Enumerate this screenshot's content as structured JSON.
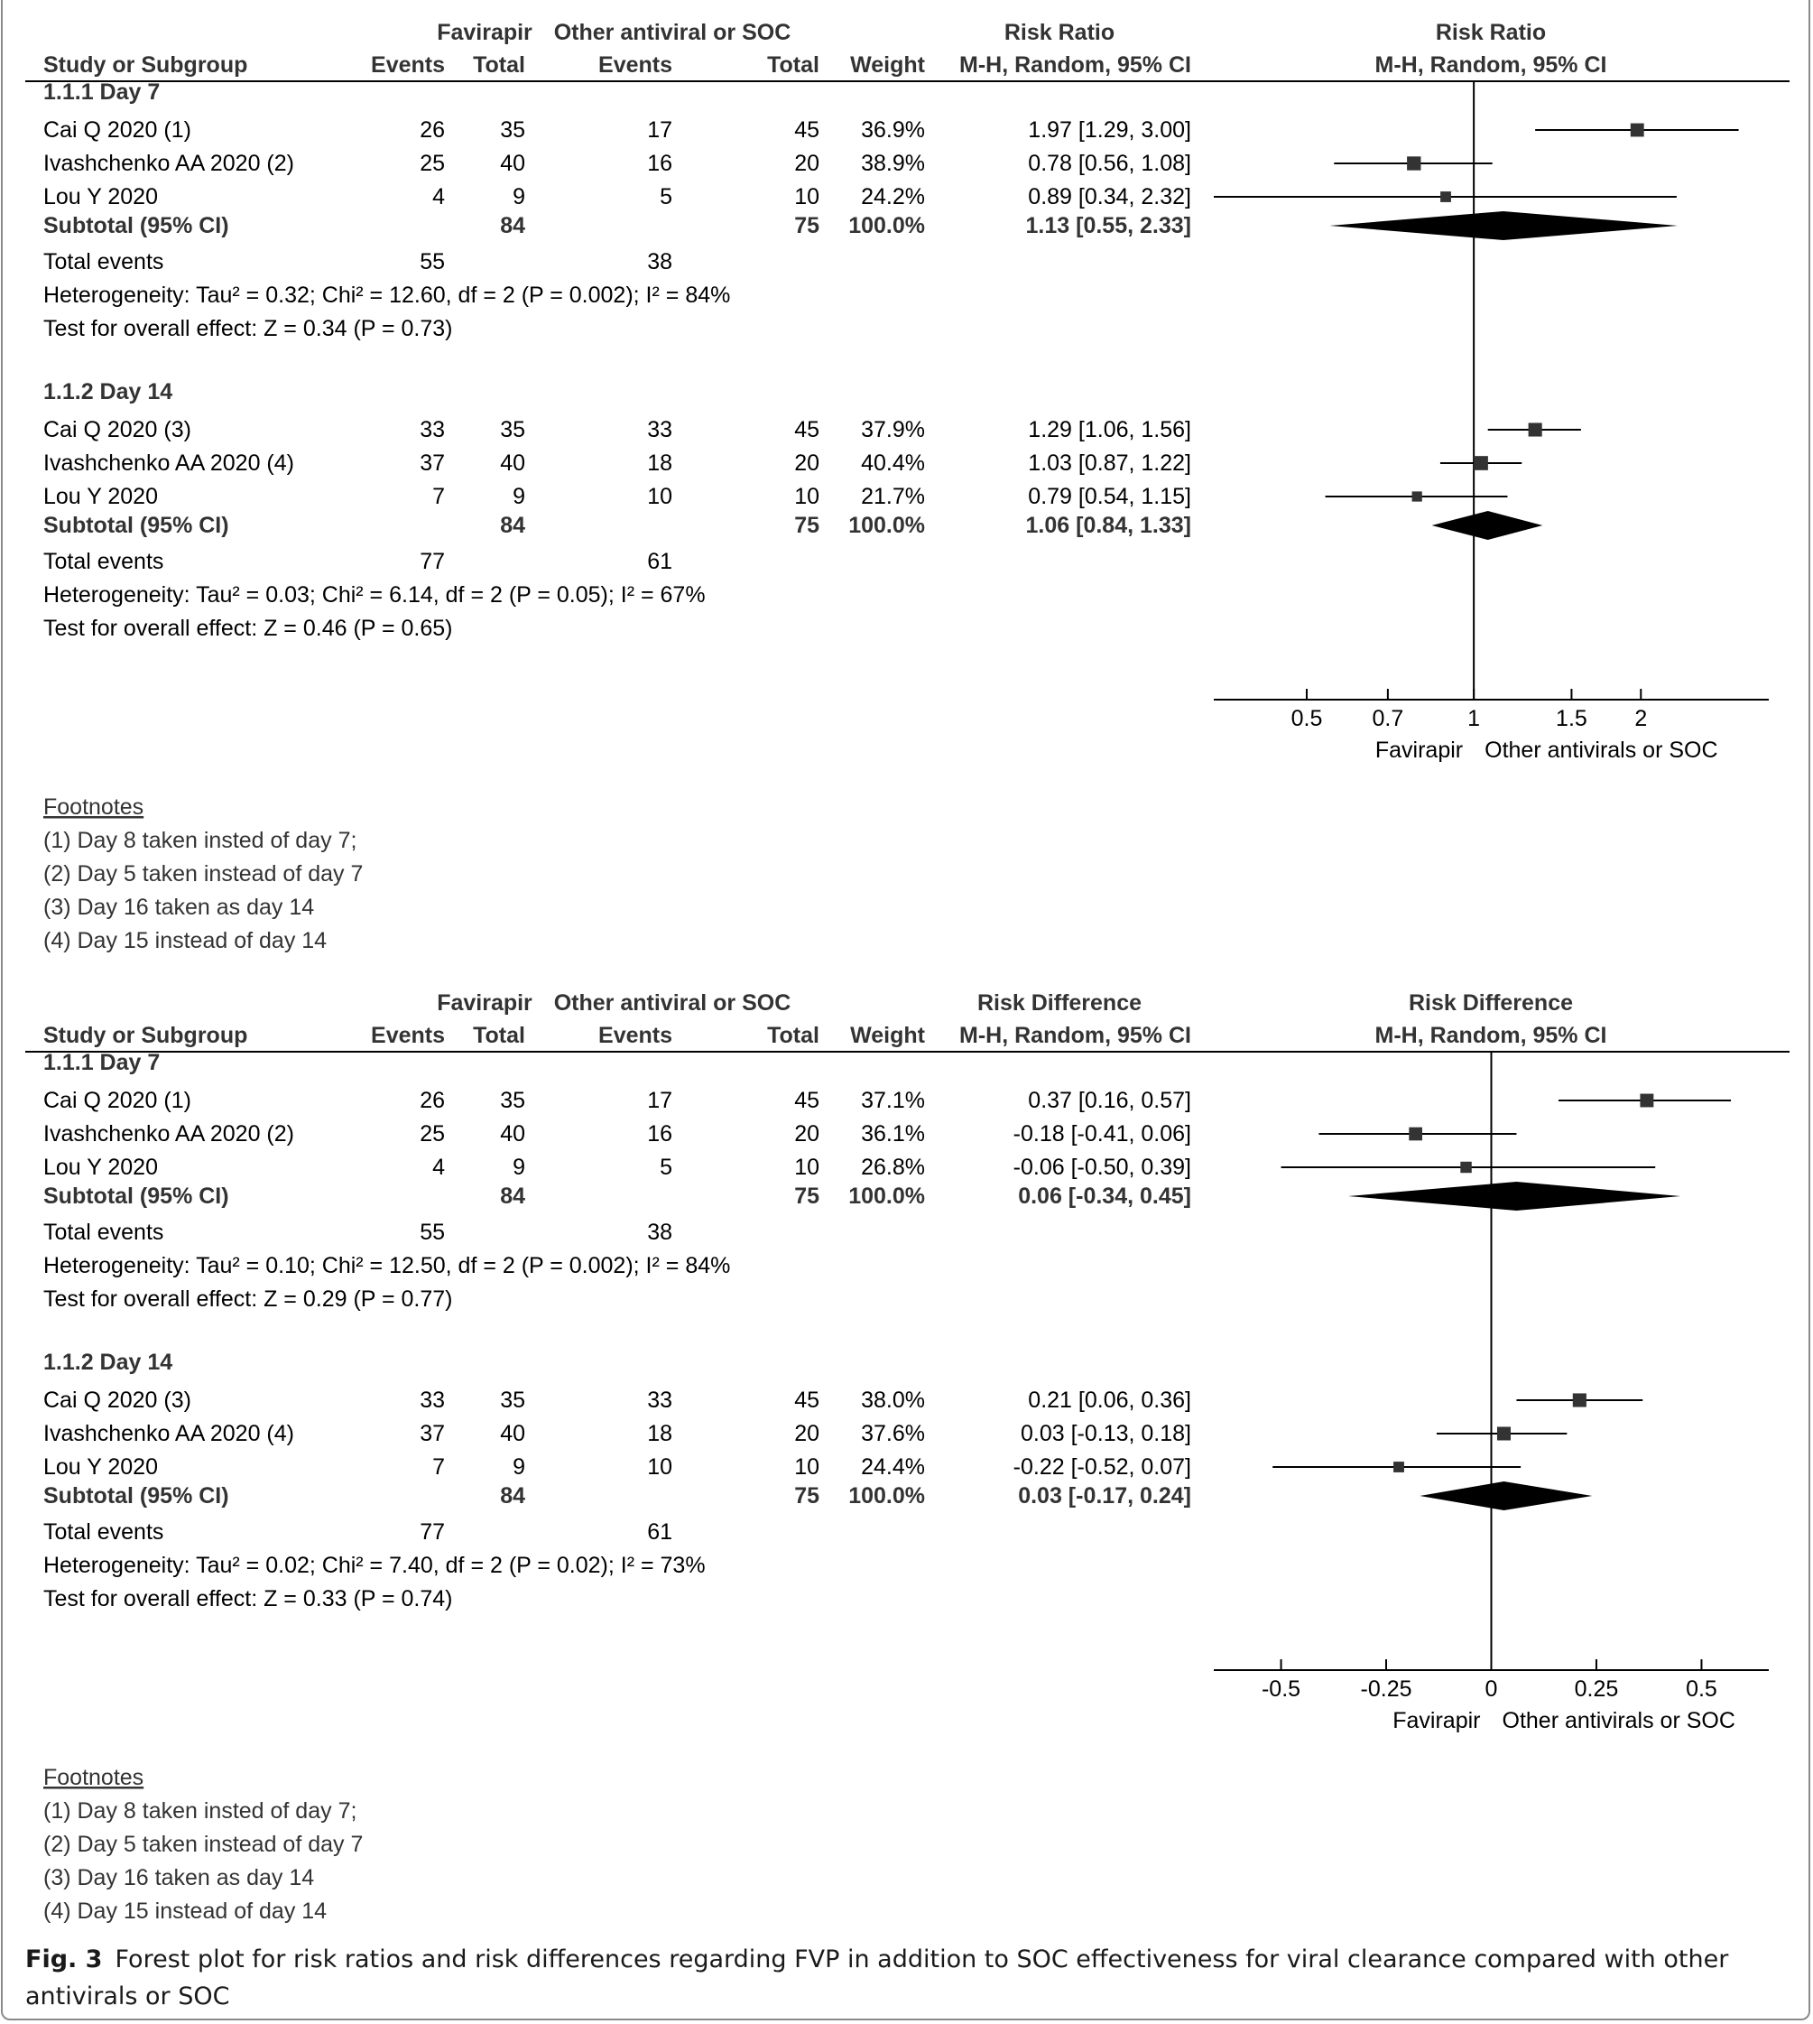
{
  "headers": {
    "study": "Study or Subgroup",
    "fav_group": "Favirapir",
    "oth_group": "Other antiviral or SOC",
    "events": "Events",
    "total": "Total",
    "weight": "Weight",
    "method": "M-H, Random, 95% CI"
  },
  "chart_data": [
    {
      "type": "forest",
      "measure": "Risk Ratio",
      "scale": "log",
      "xlim": [
        0.34,
        3.4
      ],
      "ticks": [
        0.5,
        0.7,
        1,
        1.5,
        2
      ],
      "tick_labels": [
        "0.5",
        "0.7",
        "1",
        "1.5",
        "2"
      ],
      "favours_left": "Favirapir",
      "favours_right": "Other antivirals or SOC",
      "subgroups": [
        {
          "label": "1.1.1 Day 7",
          "studies": [
            {
              "name": "Cai Q 2020 (1)",
              "fav_events": "26",
              "fav_total": "35",
              "oth_events": "17",
              "oth_total": "45",
              "weight": "36.9%",
              "ci_text": "1.97 [1.29, 3.00]",
              "est": 1.97,
              "lo": 1.29,
              "hi": 3.0,
              "w": 36.9
            },
            {
              "name": "Ivashchenko AA 2020 (2)",
              "fav_events": "25",
              "fav_total": "40",
              "oth_events": "16",
              "oth_total": "20",
              "weight": "38.9%",
              "ci_text": "0.78 [0.56, 1.08]",
              "est": 0.78,
              "lo": 0.56,
              "hi": 1.08,
              "w": 38.9
            },
            {
              "name": "Lou Y 2020",
              "fav_events": "4",
              "fav_total": "9",
              "oth_events": "5",
              "oth_total": "10",
              "weight": "24.2%",
              "ci_text": "0.89 [0.34, 2.32]",
              "est": 0.89,
              "lo": 0.34,
              "hi": 2.32,
              "w": 24.2
            }
          ],
          "subtotal": {
            "label": "Subtotal (95% CI)",
            "fav_total": "84",
            "oth_total": "75",
            "weight": "100.0%",
            "ci_text": "1.13 [0.55, 2.33]",
            "est": 1.13,
            "lo": 0.55,
            "hi": 2.33
          },
          "total_events": {
            "label": "Total events",
            "fav": "55",
            "oth": "38"
          },
          "heterogeneity": "Heterogeneity: Tau² = 0.32; Chi² = 12.60, df = 2 (P = 0.002); I² = 84%",
          "overall": "Test for overall effect: Z = 0.34 (P = 0.73)"
        },
        {
          "label": "1.1.2 Day 14",
          "studies": [
            {
              "name": "Cai Q 2020 (3)",
              "fav_events": "33",
              "fav_total": "35",
              "oth_events": "33",
              "oth_total": "45",
              "weight": "37.9%",
              "ci_text": "1.29 [1.06, 1.56]",
              "est": 1.29,
              "lo": 1.06,
              "hi": 1.56,
              "w": 37.9
            },
            {
              "name": "Ivashchenko AA 2020 (4)",
              "fav_events": "37",
              "fav_total": "40",
              "oth_events": "18",
              "oth_total": "20",
              "weight": "40.4%",
              "ci_text": "1.03 [0.87, 1.22]",
              "est": 1.03,
              "lo": 0.87,
              "hi": 1.22,
              "w": 40.4
            },
            {
              "name": "Lou Y 2020",
              "fav_events": "7",
              "fav_total": "9",
              "oth_events": "10",
              "oth_total": "10",
              "weight": "21.7%",
              "ci_text": "0.79 [0.54, 1.15]",
              "est": 0.79,
              "lo": 0.54,
              "hi": 1.15,
              "w": 21.7
            }
          ],
          "subtotal": {
            "label": "Subtotal (95% CI)",
            "fav_total": "84",
            "oth_total": "75",
            "weight": "100.0%",
            "ci_text": "1.06 [0.84, 1.33]",
            "est": 1.06,
            "lo": 0.84,
            "hi": 1.33
          },
          "total_events": {
            "label": "Total events",
            "fav": "77",
            "oth": "61"
          },
          "heterogeneity": "Heterogeneity: Tau² = 0.03; Chi² = 6.14, df = 2 (P = 0.05); I² = 67%",
          "overall": "Test for overall effect: Z = 0.46 (P = 0.65)"
        }
      ],
      "footnotes_title": "Footnotes",
      "footnotes": [
        "(1) Day 8 taken insted of day 7;",
        "(2) Day 5 taken instead of day 7",
        "(3) Day 16 taken as day 14",
        "(4) Day 15 instead of day 14"
      ]
    },
    {
      "type": "forest",
      "measure": "Risk Difference",
      "scale": "linear",
      "xlim": [
        -0.66,
        0.66
      ],
      "ticks": [
        -0.5,
        -0.25,
        0,
        0.25,
        0.5
      ],
      "tick_labels": [
        "-0.5",
        "-0.25",
        "0",
        "0.25",
        "0.5"
      ],
      "favours_left": "Favirapir",
      "favours_right": "Other antivirals or SOC",
      "subgroups": [
        {
          "label": "1.1.1 Day 7",
          "studies": [
            {
              "name": "Cai Q 2020 (1)",
              "fav_events": "26",
              "fav_total": "35",
              "oth_events": "17",
              "oth_total": "45",
              "weight": "37.1%",
              "ci_text": "0.37 [0.16, 0.57]",
              "est": 0.37,
              "lo": 0.16,
              "hi": 0.57,
              "w": 37.1
            },
            {
              "name": "Ivashchenko AA 2020 (2)",
              "fav_events": "25",
              "fav_total": "40",
              "oth_events": "16",
              "oth_total": "20",
              "weight": "36.1%",
              "ci_text": "-0.18 [-0.41, 0.06]",
              "est": -0.18,
              "lo": -0.41,
              "hi": 0.06,
              "w": 36.1
            },
            {
              "name": "Lou Y 2020",
              "fav_events": "4",
              "fav_total": "9",
              "oth_events": "5",
              "oth_total": "10",
              "weight": "26.8%",
              "ci_text": "-0.06 [-0.50, 0.39]",
              "est": -0.06,
              "lo": -0.5,
              "hi": 0.39,
              "w": 26.8
            }
          ],
          "subtotal": {
            "label": "Subtotal (95% CI)",
            "fav_total": "84",
            "oth_total": "75",
            "weight": "100.0%",
            "ci_text": "0.06 [-0.34, 0.45]",
            "est": 0.06,
            "lo": -0.34,
            "hi": 0.45
          },
          "total_events": {
            "label": "Total events",
            "fav": "55",
            "oth": "38"
          },
          "heterogeneity": "Heterogeneity: Tau² = 0.10; Chi² = 12.50, df = 2 (P = 0.002); I² = 84%",
          "overall": "Test for overall effect: Z = 0.29 (P = 0.77)"
        },
        {
          "label": "1.1.2 Day 14",
          "studies": [
            {
              "name": "Cai Q 2020 (3)",
              "fav_events": "33",
              "fav_total": "35",
              "oth_events": "33",
              "oth_total": "45",
              "weight": "38.0%",
              "ci_text": "0.21 [0.06, 0.36]",
              "est": 0.21,
              "lo": 0.06,
              "hi": 0.36,
              "w": 38.0
            },
            {
              "name": "Ivashchenko AA 2020 (4)",
              "fav_events": "37",
              "fav_total": "40",
              "oth_events": "18",
              "oth_total": "20",
              "weight": "37.6%",
              "ci_text": "0.03 [-0.13, 0.18]",
              "est": 0.03,
              "lo": -0.13,
              "hi": 0.18,
              "w": 37.6
            },
            {
              "name": "Lou Y 2020",
              "fav_events": "7",
              "fav_total": "9",
              "oth_events": "10",
              "oth_total": "10",
              "weight": "24.4%",
              "ci_text": "-0.22 [-0.52, 0.07]",
              "est": -0.22,
              "lo": -0.52,
              "hi": 0.07,
              "w": 24.4
            }
          ],
          "subtotal": {
            "label": "Subtotal (95% CI)",
            "fav_total": "84",
            "oth_total": "75",
            "weight": "100.0%",
            "ci_text": "0.03 [-0.17, 0.24]",
            "est": 0.03,
            "lo": -0.17,
            "hi": 0.24
          },
          "total_events": {
            "label": "Total events",
            "fav": "77",
            "oth": "61"
          },
          "heterogeneity": "Heterogeneity: Tau² = 0.02; Chi² = 7.40, df = 2 (P = 0.02); I² = 73%",
          "overall": "Test for overall effect: Z = 0.33 (P = 0.74)"
        }
      ],
      "footnotes_title": "Footnotes",
      "footnotes": [
        "(1) Day 8 taken insted of day 7;",
        "(2) Day 5 taken instead of day 7",
        "(3) Day 16 taken as day 14",
        "(4) Day 15 instead of day 14"
      ]
    }
  ],
  "caption": {
    "label": "Fig. 3",
    "text": "Forest plot for risk ratios and risk differences regarding FVP in addition to SOC effectiveness for viral clearance compared with other antivirals or SOC"
  }
}
